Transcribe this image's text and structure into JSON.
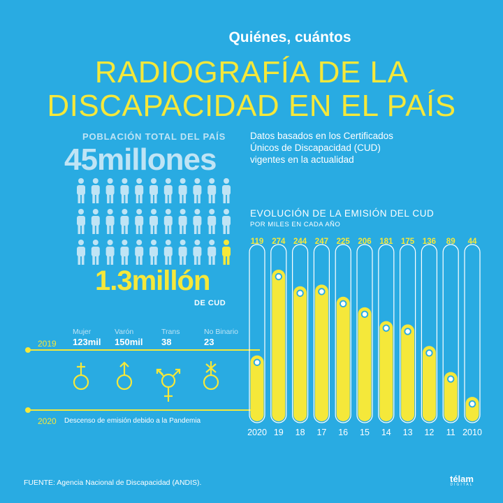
{
  "header": {
    "kicker": "Quiénes, cuántos",
    "title_line1": "RADIOGRAFÍA DE LA",
    "title_line2": "DISCAPACIDAD EN EL PAÍS"
  },
  "population": {
    "label": "POBLACIÓN TOTAL DEL PAÍS",
    "value": "45millones",
    "icon": "person-icon"
  },
  "intro": {
    "line1": "Datos basados en los Certificados",
    "line2": "Únicos de Discapacidad (CUD)",
    "line3": "vigentes en la actualidad"
  },
  "cud": {
    "value": "1.3millón",
    "label": "DE CUD"
  },
  "genders": [
    {
      "label": "Mujer",
      "value": "123mil",
      "icon": "female-symbol-icon"
    },
    {
      "label": "Varón",
      "value": "150mil",
      "icon": "male-symbol-icon"
    },
    {
      "label": "Trans",
      "value": "38",
      "icon": "transgender-symbol-icon"
    },
    {
      "label": "No Binario",
      "value": "23",
      "icon": "nonbinary-symbol-icon"
    }
  ],
  "timeline": {
    "year2019": "2019",
    "year2020": "2020",
    "note2020": "Descenso de emisión debido a la Pandemia"
  },
  "chart_data": {
    "type": "bar",
    "title": "EVOLUCIÓN DE LA EMISIÓN DEL CUD",
    "subtitle": "POR MILES EN CADA AÑO",
    "categories": [
      "2020",
      "19",
      "18",
      "17",
      "16",
      "15",
      "14",
      "13",
      "12",
      "11",
      "2010"
    ],
    "values": [
      119,
      274,
      244,
      247,
      225,
      206,
      181,
      175,
      136,
      89,
      44
    ],
    "value_labels": [
      "119",
      "274",
      "244",
      "247",
      "225",
      "206",
      "181",
      "175",
      "136",
      "89",
      "44"
    ],
    "ylim": [
      0,
      300
    ],
    "grid": false,
    "colors": {
      "bar": "#f5e83a",
      "track": "#ffffff",
      "background": "#29abe2"
    }
  },
  "footer": {
    "source": "FUENTE: Agencia Nacional de Discapacidad (ANDIS).",
    "logo": "télam",
    "logo_sub": "DIGITAL"
  },
  "colors": {
    "accent": "#f5e83a",
    "pale": "#bfe4f5",
    "background": "#29abe2"
  }
}
